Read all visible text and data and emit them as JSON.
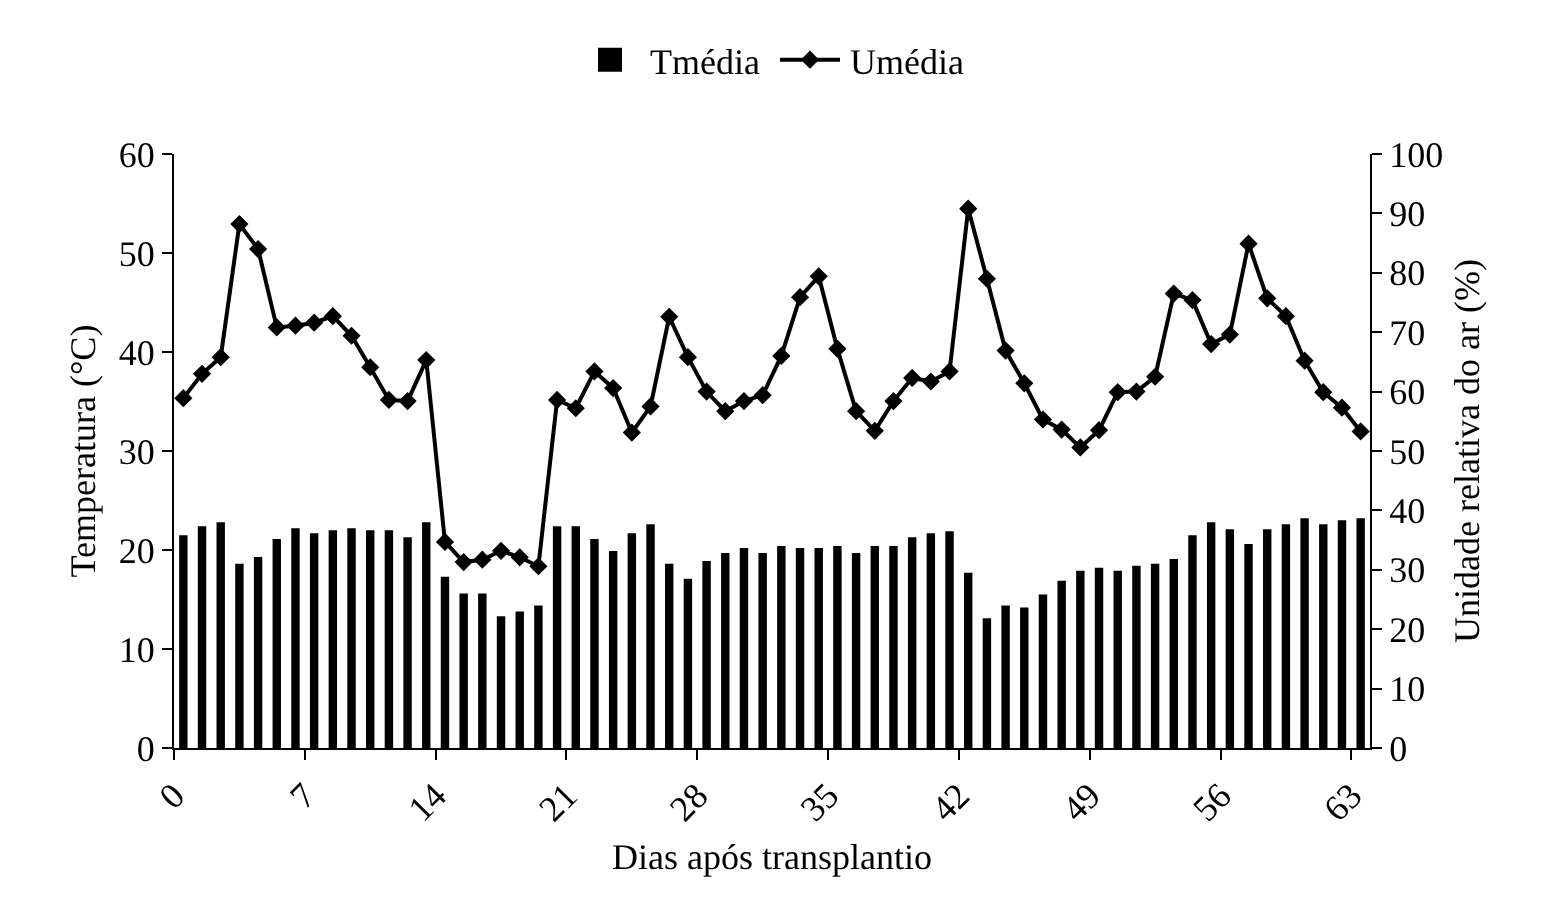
{
  "chart_data": {
    "type": "bar",
    "xlabel": "Dias após transplantio",
    "ylabel": "Temperatura (°C)",
    "y2label": "Unidade relativa do ar (%)",
    "x": [
      0,
      1,
      2,
      3,
      4,
      5,
      6,
      7,
      8,
      9,
      10,
      11,
      12,
      13,
      14,
      15,
      16,
      17,
      18,
      19,
      20,
      21,
      22,
      23,
      24,
      25,
      26,
      27,
      28,
      29,
      30,
      31,
      32,
      33,
      34,
      35,
      36,
      37,
      38,
      39,
      40,
      41,
      42,
      43,
      44,
      45,
      46,
      47,
      48,
      49,
      50,
      51,
      52,
      53,
      54,
      55,
      56,
      57,
      58,
      59,
      60,
      61,
      62,
      63
    ],
    "xlim": [
      -0.5,
      63.5
    ],
    "xticks": [
      {
        "value": -0.5,
        "label": "0"
      },
      {
        "value": 6.5,
        "label": "7"
      },
      {
        "value": 13.5,
        "label": "14"
      },
      {
        "value": 20.5,
        "label": "21"
      },
      {
        "value": 27.5,
        "label": "28"
      },
      {
        "value": 34.5,
        "label": "35"
      },
      {
        "value": 41.5,
        "label": "42"
      },
      {
        "value": 48.5,
        "label": "49"
      },
      {
        "value": 55.5,
        "label": "56"
      },
      {
        "value": 62.5,
        "label": "63"
      }
    ],
    "ylim": [
      0,
      60
    ],
    "yticks": [
      0,
      10,
      20,
      30,
      40,
      50,
      60
    ],
    "y2lim": [
      0,
      100
    ],
    "y2ticks": [
      0,
      10,
      20,
      30,
      40,
      50,
      60,
      70,
      80,
      90,
      100
    ],
    "grid": false,
    "legend": "top",
    "series": [
      {
        "name": "Tmédia",
        "color": "#000000",
        "values": [
          21.5,
          22.4,
          22.8,
          18.6,
          19.3,
          21.1,
          22.2,
          21.7,
          22.0,
          22.2,
          22.0,
          22.0,
          21.3,
          22.8,
          17.3,
          15.6,
          15.6,
          13.3,
          13.8,
          14.4,
          22.4,
          22.4,
          21.1,
          19.9,
          21.7,
          22.6,
          18.6,
          17.1,
          18.9,
          19.7,
          20.2,
          19.7,
          20.4,
          20.2,
          20.2,
          20.4,
          19.7,
          20.4,
          20.4,
          21.3,
          21.7,
          21.9,
          17.7,
          13.1,
          14.4,
          14.2,
          15.5,
          16.9,
          17.9,
          18.2,
          17.9,
          18.4,
          18.6,
          19.1,
          21.5,
          22.8,
          22.1,
          20.6,
          22.1,
          22.6,
          23.2,
          22.6,
          23.0,
          23.2
        ]
      },
      {
        "name": "Umédia",
        "type": "line",
        "axis": "y2",
        "color": "#000000",
        "marker": "diamond",
        "line_style": "solid",
        "values": [
          58.9,
          63.0,
          65.8,
          88.2,
          84.0,
          70.8,
          71.1,
          71.6,
          72.7,
          69.4,
          64.1,
          58.6,
          58.4,
          65.3,
          34.7,
          31.3,
          31.7,
          33.2,
          32.1,
          30.6,
          58.6,
          57.2,
          63.4,
          60.6,
          53.1,
          57.5,
          72.6,
          65.8,
          60.0,
          56.7,
          58.4,
          59.4,
          66.0,
          75.9,
          79.4,
          67.2,
          56.7,
          53.4,
          58.4,
          62.3,
          61.7,
          63.4,
          90.8,
          79.0,
          66.9,
          61.4,
          55.3,
          53.6,
          50.6,
          53.5,
          59.9,
          60.0,
          62.5,
          76.5,
          75.4,
          68.0,
          69.6,
          84.9,
          75.7,
          72.7,
          65.2,
          59.9,
          57.3,
          53.3
        ]
      }
    ]
  }
}
